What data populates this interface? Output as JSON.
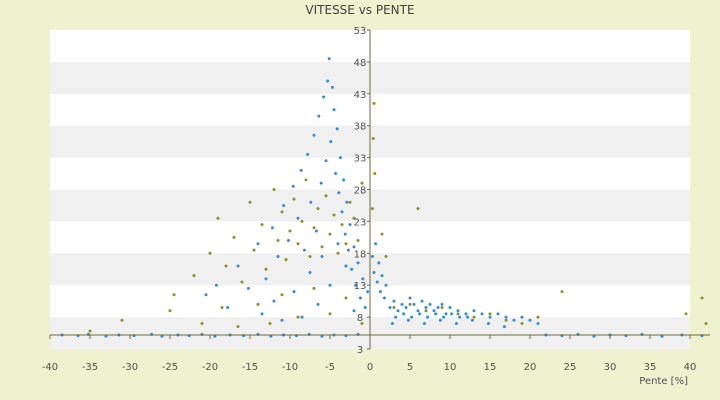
{
  "chart_data": {
    "type": "scatter",
    "title": "VITESSE vs PENTE",
    "xlabel": "Pente [%]",
    "ylabel": "",
    "xlim": [
      -40,
      42
    ],
    "ylim": [
      3,
      53
    ],
    "x_ticks": [
      -40,
      -35,
      -30,
      -25,
      -20,
      -15,
      -10,
      -5,
      0,
      5,
      10,
      15,
      20,
      25,
      30,
      35,
      40
    ],
    "y_ticks": [
      3,
      8,
      13,
      18,
      23,
      28,
      33,
      38,
      43,
      48,
      53
    ],
    "grid": "horizontal alternating bands",
    "colors": {
      "page_background": "#eef2cf",
      "plot_band_light": "#ffffff",
      "plot_band_dark": "#f0f0f0",
      "axis": "#6b6b3a",
      "series_a": "#2d8ce0",
      "series_b": "#8f8f1e"
    },
    "series": [
      {
        "color": "#2d8ce0",
        "points": [
          [
            -38.5,
            5.2
          ],
          [
            -36.5,
            5.1
          ],
          [
            -35.2,
            5.3
          ],
          [
            -33.0,
            5.0
          ],
          [
            -31.4,
            5.2
          ],
          [
            -29.5,
            5.1
          ],
          [
            -27.3,
            5.3
          ],
          [
            -26.0,
            5.0
          ],
          [
            -24.0,
            5.2
          ],
          [
            -22.6,
            5.1
          ],
          [
            -21.0,
            5.3
          ],
          [
            -19.4,
            5.0
          ],
          [
            -17.5,
            5.2
          ],
          [
            -15.8,
            5.1
          ],
          [
            -14.0,
            5.3
          ],
          [
            -12.4,
            5.0
          ],
          [
            -10.8,
            5.2
          ],
          [
            -9.2,
            5.1
          ],
          [
            -7.6,
            5.3
          ],
          [
            -6.0,
            5.0
          ],
          [
            -4.5,
            5.2
          ],
          [
            -3.0,
            5.1
          ],
          [
            -1.5,
            5.3
          ],
          [
            -20.5,
            11.5
          ],
          [
            -19.2,
            13.0
          ],
          [
            -17.8,
            9.5
          ],
          [
            -16.5,
            16.0
          ],
          [
            -15.2,
            12.5
          ],
          [
            -14.0,
            19.5
          ],
          [
            -13.0,
            14.0
          ],
          [
            -12.2,
            22.0
          ],
          [
            -11.5,
            17.5
          ],
          [
            -10.8,
            25.5
          ],
          [
            -10.2,
            20.0
          ],
          [
            -9.6,
            28.5
          ],
          [
            -9.0,
            23.5
          ],
          [
            -8.6,
            31.0
          ],
          [
            -8.2,
            18.5
          ],
          [
            -7.8,
            33.5
          ],
          [
            -7.4,
            26.0
          ],
          [
            -7.0,
            36.5
          ],
          [
            -6.7,
            21.5
          ],
          [
            -6.4,
            39.5
          ],
          [
            -6.1,
            29.0
          ],
          [
            -5.8,
            42.5
          ],
          [
            -5.5,
            32.5
          ],
          [
            -5.3,
            45.0
          ],
          [
            -5.1,
            48.5
          ],
          [
            -4.9,
            35.5
          ],
          [
            -4.7,
            44.0
          ],
          [
            -4.5,
            40.5
          ],
          [
            -4.3,
            30.5
          ],
          [
            -4.1,
            37.5
          ],
          [
            -3.9,
            27.5
          ],
          [
            -3.7,
            33.0
          ],
          [
            -3.5,
            24.5
          ],
          [
            -3.3,
            29.5
          ],
          [
            -3.1,
            21.0
          ],
          [
            -2.9,
            26.0
          ],
          [
            -2.7,
            18.5
          ],
          [
            -2.5,
            22.5
          ],
          [
            -2.3,
            15.5
          ],
          [
            -2.0,
            19.0
          ],
          [
            -1.8,
            13.0
          ],
          [
            -1.5,
            16.5
          ],
          [
            -1.2,
            11.0
          ],
          [
            -0.9,
            14.0
          ],
          [
            -0.6,
            9.5
          ],
          [
            -0.3,
            12.0
          ],
          [
            -13.5,
            8.5
          ],
          [
            -12.0,
            10.5
          ],
          [
            -11.0,
            7.5
          ],
          [
            -9.5,
            12.0
          ],
          [
            -8.5,
            8.0
          ],
          [
            -7.5,
            15.0
          ],
          [
            -6.5,
            10.0
          ],
          [
            -6.0,
            17.5
          ],
          [
            -5.0,
            13.0
          ],
          [
            -4.0,
            19.5
          ],
          [
            -3.0,
            16.0
          ],
          [
            -2.0,
            9.0
          ],
          [
            0.3,
            17.5
          ],
          [
            0.5,
            15.0
          ],
          [
            0.7,
            19.5
          ],
          [
            0.9,
            13.5
          ],
          [
            1.1,
            16.5
          ],
          [
            1.3,
            12.0
          ],
          [
            1.5,
            14.5
          ],
          [
            1.8,
            11.0
          ],
          [
            2.0,
            13.0
          ],
          [
            2.5,
            9.5
          ],
          [
            3.0,
            10.5
          ],
          [
            3.5,
            9.0
          ],
          [
            4.0,
            10.0
          ],
          [
            4.5,
            9.5
          ],
          [
            5.0,
            11.0
          ],
          [
            5.5,
            10.0
          ],
          [
            6.0,
            9.0
          ],
          [
            6.5,
            10.5
          ],
          [
            7.0,
            9.5
          ],
          [
            7.5,
            10.0
          ],
          [
            8.0,
            9.0
          ],
          [
            8.5,
            9.5
          ],
          [
            9.0,
            10.0
          ],
          [
            9.5,
            8.5
          ],
          [
            10.0,
            9.5
          ],
          [
            11.0,
            9.0
          ],
          [
            12.0,
            8.5
          ],
          [
            13.0,
            9.0
          ],
          [
            14.0,
            8.5
          ],
          [
            15.0,
            8.0
          ],
          [
            16.0,
            8.5
          ],
          [
            17.0,
            8.0
          ],
          [
            18.0,
            7.5
          ],
          [
            19.0,
            8.0
          ],
          [
            20.0,
            7.5
          ],
          [
            21.0,
            7.0
          ],
          [
            3.2,
            8.0
          ],
          [
            4.2,
            8.5
          ],
          [
            5.2,
            8.0
          ],
          [
            6.2,
            8.5
          ],
          [
            7.2,
            8.0
          ],
          [
            8.2,
            8.5
          ],
          [
            9.2,
            8.0
          ],
          [
            10.2,
            8.5
          ],
          [
            11.2,
            8.0
          ],
          [
            12.2,
            8.0
          ],
          [
            2.8,
            7.0
          ],
          [
            4.8,
            7.5
          ],
          [
            6.8,
            7.0
          ],
          [
            8.8,
            7.5
          ],
          [
            10.8,
            7.0
          ],
          [
            12.8,
            7.5
          ],
          [
            14.8,
            7.0
          ],
          [
            16.8,
            6.5
          ],
          [
            22.0,
            5.2
          ],
          [
            24.0,
            5.1
          ],
          [
            26.0,
            5.3
          ],
          [
            28.0,
            5.0
          ],
          [
            30.0,
            5.2
          ],
          [
            32.0,
            5.1
          ],
          [
            34.0,
            5.3
          ],
          [
            36.5,
            5.0
          ],
          [
            39.0,
            5.2
          ],
          [
            41.5,
            5.1
          ]
        ]
      },
      {
        "color": "#8f8f1e",
        "points": [
          [
            -35.0,
            5.8
          ],
          [
            -31.0,
            7.5
          ],
          [
            -25.0,
            9.0
          ],
          [
            -24.5,
            11.5
          ],
          [
            -22.0,
            14.5
          ],
          [
            -20.0,
            18.0
          ],
          [
            -19.0,
            23.5
          ],
          [
            -18.0,
            16.0
          ],
          [
            -17.0,
            20.5
          ],
          [
            -16.0,
            13.5
          ],
          [
            -15.0,
            26.0
          ],
          [
            -14.5,
            18.5
          ],
          [
            -13.5,
            22.5
          ],
          [
            -13.0,
            15.5
          ],
          [
            -12.0,
            28.0
          ],
          [
            -11.5,
            20.0
          ],
          [
            -11.0,
            24.5
          ],
          [
            -10.5,
            17.0
          ],
          [
            -10.0,
            21.5
          ],
          [
            -9.5,
            26.5
          ],
          [
            -9.0,
            19.5
          ],
          [
            -8.5,
            23.0
          ],
          [
            -8.0,
            29.5
          ],
          [
            -7.5,
            17.5
          ],
          [
            -7.0,
            22.0
          ],
          [
            -6.5,
            25.0
          ],
          [
            -6.0,
            19.0
          ],
          [
            -5.5,
            27.0
          ],
          [
            -5.0,
            21.0
          ],
          [
            -4.5,
            24.0
          ],
          [
            -4.0,
            18.0
          ],
          [
            -3.5,
            22.5
          ],
          [
            -3.0,
            19.5
          ],
          [
            -2.5,
            26.0
          ],
          [
            -2.0,
            23.5
          ],
          [
            -1.5,
            20.0
          ],
          [
            -1.0,
            29.0
          ],
          [
            -21.0,
            7.0
          ],
          [
            -18.5,
            9.5
          ],
          [
            -16.5,
            6.5
          ],
          [
            -14.0,
            10.0
          ],
          [
            -12.5,
            7.0
          ],
          [
            -11.0,
            11.5
          ],
          [
            -9.0,
            8.0
          ],
          [
            -7.0,
            12.5
          ],
          [
            -5.0,
            8.5
          ],
          [
            -3.0,
            11.0
          ],
          [
            -1.0,
            7.0
          ],
          [
            0.5,
            41.5
          ],
          [
            0.4,
            36.0
          ],
          [
            0.3,
            25.0
          ],
          [
            0.6,
            30.5
          ],
          [
            1.5,
            21.0
          ],
          [
            2.0,
            17.5
          ],
          [
            3.0,
            9.5
          ],
          [
            5.0,
            10.0
          ],
          [
            7.0,
            9.0
          ],
          [
            9.0,
            9.5
          ],
          [
            11.0,
            8.5
          ],
          [
            13.0,
            8.0
          ],
          [
            15.0,
            8.5
          ],
          [
            17.0,
            7.5
          ],
          [
            19.0,
            7.0
          ],
          [
            21.0,
            8.0
          ],
          [
            6.0,
            25.0
          ],
          [
            24.0,
            12.0
          ],
          [
            39.5,
            8.5
          ],
          [
            41.5,
            11.0
          ],
          [
            42.0,
            7.0
          ]
        ]
      }
    ]
  }
}
